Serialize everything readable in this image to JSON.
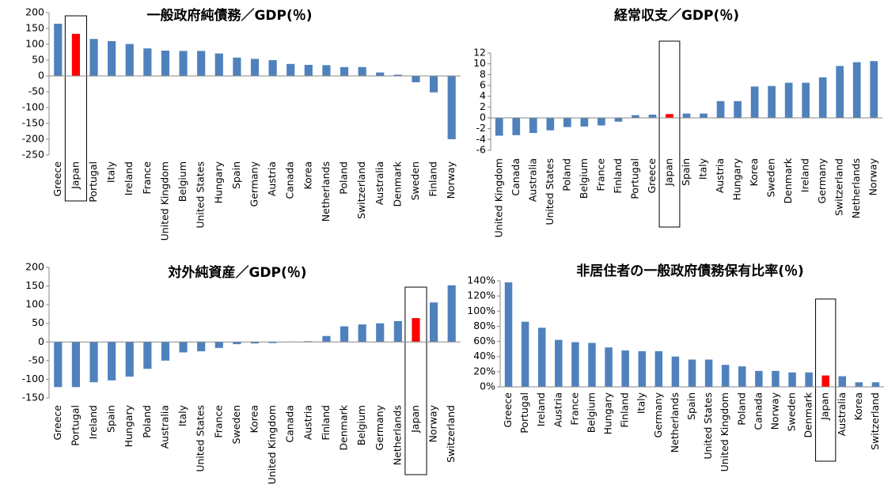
{
  "chart_data": [
    {
      "type": "bar",
      "title": "一般政府純債務／GDP(％)",
      "categories": [
        "Greece",
        "Japan",
        "Portugal",
        "Italy",
        "Ireland",
        "France",
        "United Kingdom",
        "Belgium",
        "United States",
        "Hungary",
        "Spain",
        "Germany",
        "Austria",
        "Canada",
        "Korea",
        "Netherlands",
        "Poland",
        "Switzerland",
        "Australia",
        "Denmark",
        "Sweden",
        "Finland",
        "Norway"
      ],
      "values": [
        165,
        133,
        117,
        110,
        101,
        87,
        80,
        79,
        79,
        71,
        58,
        54,
        50,
        38,
        35,
        34,
        28,
        28,
        11,
        4,
        -20,
        -52,
        -200
      ],
      "color": "#4f81bd",
      "highlight_color": "#ff0000",
      "highlight_category": "Japan",
      "ylim": [
        -250,
        200
      ],
      "yticks": [
        -250,
        -200,
        -150,
        -100,
        -50,
        0,
        50,
        100,
        150,
        200
      ]
    },
    {
      "type": "bar",
      "title": "経常収支／GDP(％)",
      "categories": [
        "United Kingdom",
        "Canada",
        "Australia",
        "United States",
        "Poland",
        "Belgium",
        "France",
        "Finland",
        "Portugal",
        "Greece",
        "Japan",
        "Spain",
        "Italy",
        "Austria",
        "Hungary",
        "Korea",
        "Sweden",
        "Denmark",
        "Ireland",
        "Germany",
        "Switzerland",
        "Netherlands",
        "Norway"
      ],
      "values": [
        -3.3,
        -3.2,
        -2.8,
        -2.3,
        -1.7,
        -1.6,
        -1.4,
        -0.7,
        0.5,
        0.6,
        0.7,
        0.8,
        0.8,
        3.1,
        3.1,
        5.8,
        5.9,
        6.5,
        6.5,
        7.5,
        9.6,
        10.3,
        10.5
      ],
      "color": "#4f81bd",
      "highlight_color": "#ff0000",
      "highlight_category": "Japan",
      "ylim": [
        -6,
        12
      ],
      "yticks": [
        -6,
        -4,
        -2,
        0,
        2,
        4,
        6,
        8,
        10,
        12
      ]
    },
    {
      "type": "bar",
      "title": "対外純資産／GDP(％)",
      "categories": [
        "Greece",
        "Portugal",
        "Ireland",
        "Spain",
        "Hungary",
        "Poland",
        "Australia",
        "Italy",
        "United States",
        "France",
        "Sweden",
        "Korea",
        "United Kingdom",
        "Canada",
        "Austria",
        "Finland",
        "Denmark",
        "Belgium",
        "Germany",
        "Netherlands",
        "Japan",
        "Norway",
        "Switzerland"
      ],
      "values": [
        -121,
        -121,
        -108,
        -103,
        -93,
        -72,
        -50,
        -28,
        -25,
        -16,
        -6,
        -4,
        -3,
        1,
        2,
        16,
        42,
        47,
        50,
        56,
        64,
        106,
        152
      ],
      "color": "#4f81bd",
      "highlight_color": "#ff0000",
      "highlight_category": "Japan",
      "ylim": [
        -150,
        200
      ],
      "yticks": [
        -150,
        -100,
        -50,
        0,
        50,
        100,
        150,
        200
      ]
    },
    {
      "type": "bar",
      "title": "非居住者の一般政府債務保有比率(％)",
      "categories": [
        "Greece",
        "Portugal",
        "Ireland",
        "Austria",
        "France",
        "Belgium",
        "Hungary",
        "Finland",
        "Italy",
        "Germany",
        "Netherlands",
        "Spain",
        "United States",
        "United Kingdom",
        "Poland",
        "Canada",
        "Norway",
        "Sweden",
        "Denmark",
        "Japan",
        "Australia",
        "Korea",
        "Switzerland"
      ],
      "values": [
        138,
        86,
        78,
        62,
        59,
        58,
        52,
        48,
        47,
        47,
        40,
        36,
        36,
        29,
        27,
        21,
        21,
        19,
        19,
        15,
        14,
        6,
        6
      ],
      "color": "#4f81bd",
      "highlight_color": "#ff0000",
      "highlight_category": "Japan",
      "ylim": [
        0,
        140
      ],
      "yticks": [
        {
          "value": 0,
          "label": "0%"
        },
        {
          "value": 20,
          "label": "20%"
        },
        {
          "value": 40,
          "label": "40%"
        },
        {
          "value": 60,
          "label": "60%"
        },
        {
          "value": 80,
          "label": "80%"
        },
        {
          "value": 100,
          "label": "100%"
        },
        {
          "value": 120,
          "label": "120%"
        },
        {
          "value": 140,
          "label": "140%"
        }
      ]
    }
  ]
}
